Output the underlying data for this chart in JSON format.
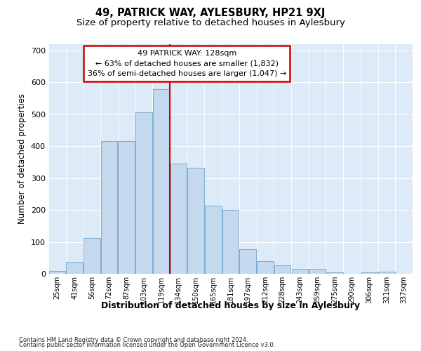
{
  "title_line1": "49, PATRICK WAY, AYLESBURY, HP21 9XJ",
  "title_line2": "Size of property relative to detached houses in Aylesbury",
  "xlabel": "Distribution of detached houses by size in Aylesbury",
  "ylabel": "Number of detached properties",
  "footer_line1": "Contains HM Land Registry data © Crown copyright and database right 2024.",
  "footer_line2": "Contains public sector information licensed under the Open Government Licence v3.0.",
  "categories": [
    "25sqm",
    "41sqm",
    "56sqm",
    "72sqm",
    "87sqm",
    "103sqm",
    "119sqm",
    "134sqm",
    "150sqm",
    "165sqm",
    "181sqm",
    "197sqm",
    "212sqm",
    "228sqm",
    "243sqm",
    "259sqm",
    "275sqm",
    "290sqm",
    "306sqm",
    "321sqm",
    "337sqm"
  ],
  "values": [
    9,
    38,
    112,
    415,
    415,
    505,
    578,
    345,
    333,
    213,
    200,
    78,
    40,
    27,
    16,
    15,
    4,
    0,
    5,
    7,
    0
  ],
  "bar_color": "#c5d9ee",
  "bar_edge_color": "#7aadd4",
  "vline_x": 6.5,
  "vline_color": "#cc0000",
  "annotation_text": "49 PATRICK WAY: 128sqm\n← 63% of detached houses are smaller (1,832)\n36% of semi-detached houses are larger (1,047) →",
  "annotation_edge_color": "#cc0000",
  "annotation_fill": "#ffffff",
  "ylim": [
    0,
    720
  ],
  "yticks": [
    0,
    100,
    200,
    300,
    400,
    500,
    600,
    700
  ],
  "fig_bg_color": "#ffffff",
  "plot_bg_color": "#ddeaf7",
  "grid_color": "#ffffff",
  "title_fontsize": 10.5,
  "subtitle_fontsize": 9.5,
  "ylabel_fontsize": 8.5,
  "xlabel_fontsize": 9,
  "xtick_fontsize": 7,
  "ytick_fontsize": 8
}
